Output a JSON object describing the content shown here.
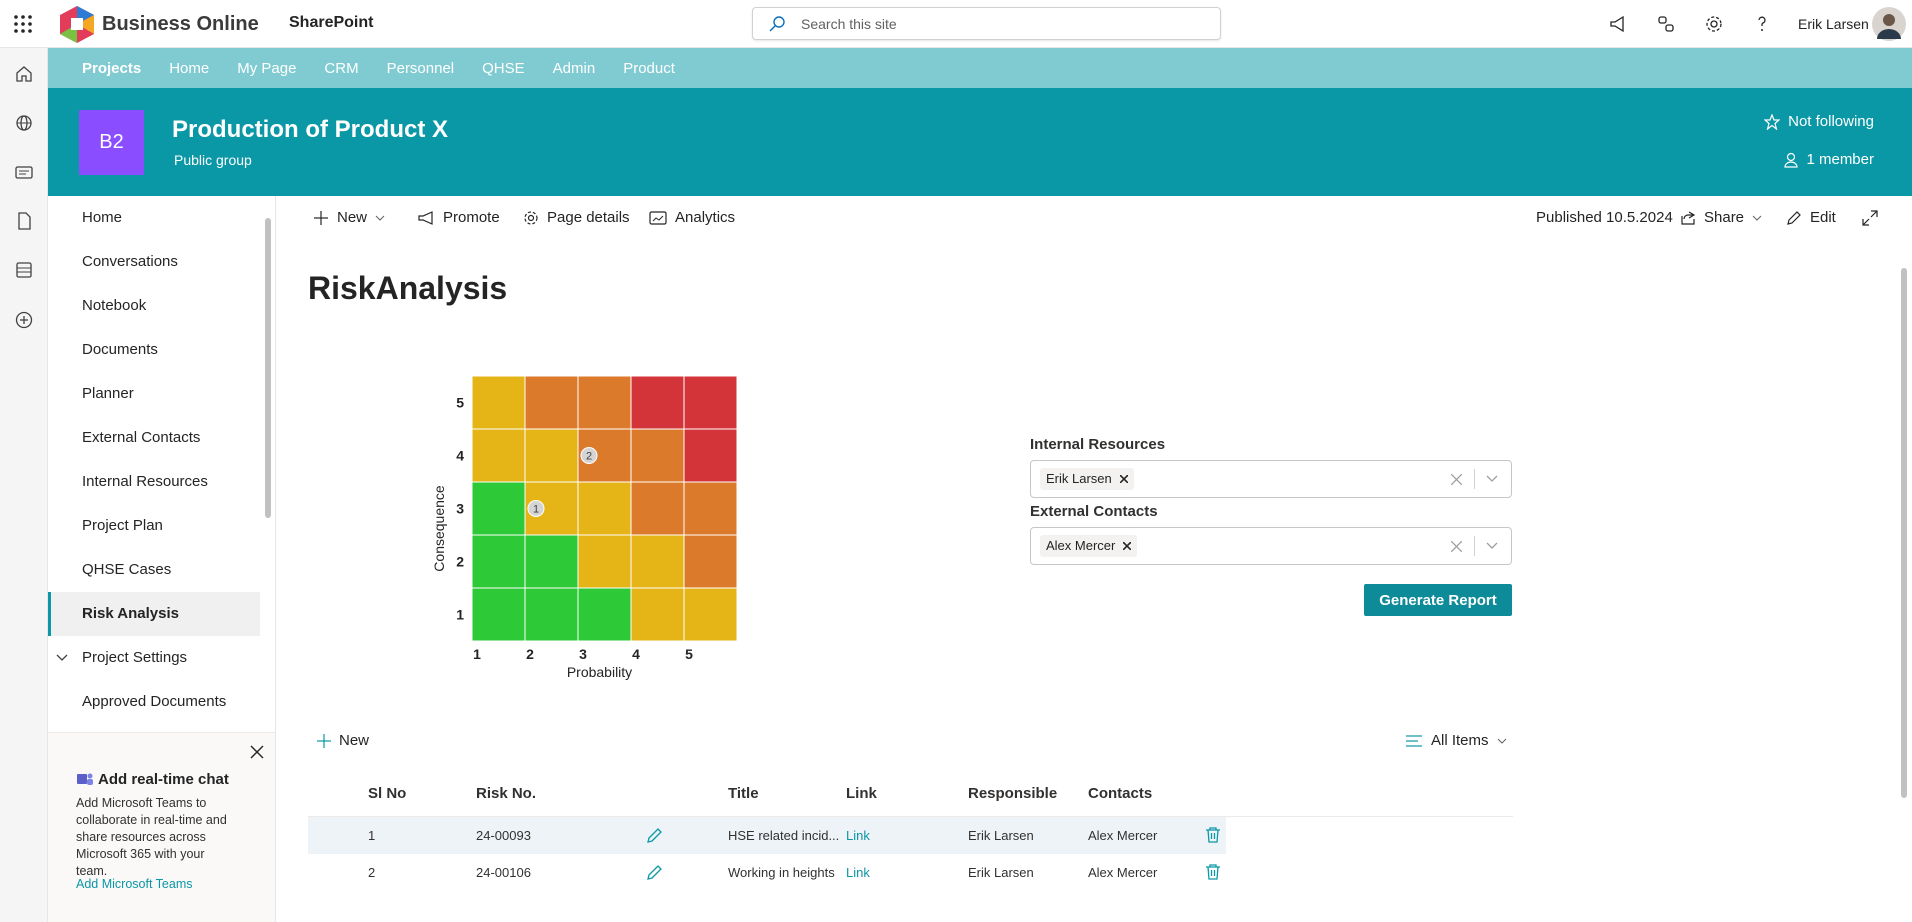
{
  "topbar": {
    "brand": "Business Online",
    "app": "SharePoint",
    "search_placeholder": "Search this site",
    "user": "Erik Larsen"
  },
  "hub_nav": {
    "items": [
      "Projects",
      "Home",
      "My Page",
      "CRM",
      "Personnel",
      "QHSE",
      "Admin",
      "Product"
    ],
    "current_index": 0
  },
  "site_header": {
    "logo": "B2",
    "title": "Production of Product X",
    "subtitle": "Public group",
    "follow": "Not following",
    "members": "1 member"
  },
  "left_nav": {
    "items": [
      "Home",
      "Conversations",
      "Notebook",
      "Documents",
      "Planner",
      "External Contacts",
      "Internal Resources",
      "Project Plan",
      "QHSE Cases",
      "Risk Analysis",
      "Project Settings",
      "Approved Documents"
    ],
    "selected_index": 9,
    "group_index": 10
  },
  "teams_promo": {
    "title": "Add real-time chat",
    "text": "Add Microsoft Teams to collaborate in real-time and share resources across Microsoft 365 with your team.",
    "link": "Add Microsoft Teams"
  },
  "command_bar": {
    "new": "New",
    "promote": "Promote",
    "page_details": "Page details",
    "analytics": "Analytics",
    "published": "Published 10.5.2024",
    "share": "Share",
    "edit": "Edit"
  },
  "page_title": "RiskAnalysis",
  "risk_matrix": {
    "x_label": "Probability",
    "y_label": "Consequence",
    "probability_ticks": [
      1,
      2,
      3,
      4,
      5
    ],
    "consequence_ticks": [
      1,
      2,
      3,
      4,
      5
    ],
    "cell_colors": [
      [
        "#2dc937",
        "#2dc937",
        "#2dc937",
        "#e5b518",
        "#e5b518"
      ],
      [
        "#2dc937",
        "#2dc937",
        "#e5b518",
        "#e5b518",
        "#dc7a2b"
      ],
      [
        "#2dc937",
        "#e5b518",
        "#e5b518",
        "#dc7a2b",
        "#dc7a2b"
      ],
      [
        "#e5b518",
        "#e5b518",
        "#dc7a2b",
        "#dc7a2b",
        "#d2343a"
      ],
      [
        "#e5b518",
        "#dc7a2b",
        "#dc7a2b",
        "#d2343a",
        "#d2343a"
      ]
    ],
    "markers": [
      {
        "label": "1",
        "probability": 2,
        "consequence": 3
      },
      {
        "label": "2",
        "probability": 3,
        "consequence": 4
      }
    ]
  },
  "resource_form": {
    "internal_label": "Internal Resources",
    "internal_value": "Erik Larsen",
    "external_label": "External Contacts",
    "external_value": "Alex Mercer",
    "button": "Generate Report"
  },
  "risk_list": {
    "new": "New",
    "view": "All Items",
    "columns": [
      "Sl No",
      "Risk No.",
      "Title",
      "Link",
      "Responsible",
      "Contacts"
    ],
    "rows": [
      [
        1,
        "24-00093",
        "HSE related incid...",
        "Link",
        "Erik Larsen",
        "Alex Mercer"
      ],
      [
        2,
        "24-00106",
        "Working in heights",
        "Link",
        "Erik Larsen",
        "Alex Mercer"
      ]
    ]
  }
}
